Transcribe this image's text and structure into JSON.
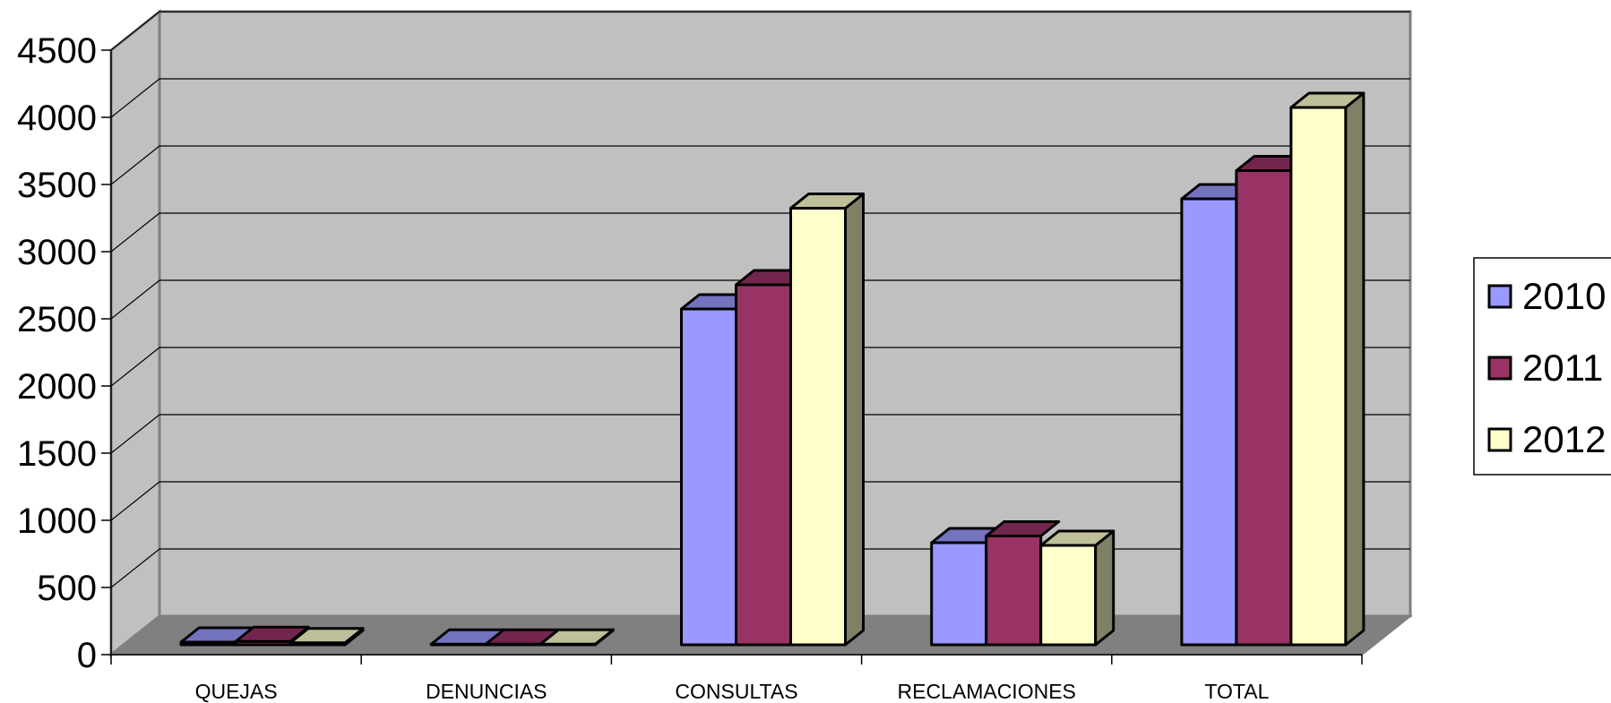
{
  "chart_data": {
    "type": "bar",
    "categories": [
      "QUEJAS",
      "DENUNCIAS",
      "CONSULTAS",
      "RECLAMACIONES",
      "TOTAL"
    ],
    "series": [
      {
        "name": "2010",
        "values": [
          20,
          5,
          2500,
          760,
          3320
        ],
        "color": "#9999ff"
      },
      {
        "name": "2011",
        "values": [
          25,
          5,
          2680,
          810,
          3530
        ],
        "color": "#993366"
      },
      {
        "name": "2012",
        "values": [
          15,
          5,
          3250,
          740,
          4000
        ],
        "color": "#ffffcc"
      }
    ],
    "ylim": [
      0,
      4500
    ],
    "yticks": [
      0,
      500,
      1000,
      1500,
      2000,
      2500,
      3000,
      3500,
      4000,
      4500
    ],
    "grid": true,
    "legend_position": "right",
    "style": "3d-clustered-column",
    "colors": {
      "wall": "#c0c0c0",
      "floor": "#808080",
      "grid": "#000000"
    }
  }
}
